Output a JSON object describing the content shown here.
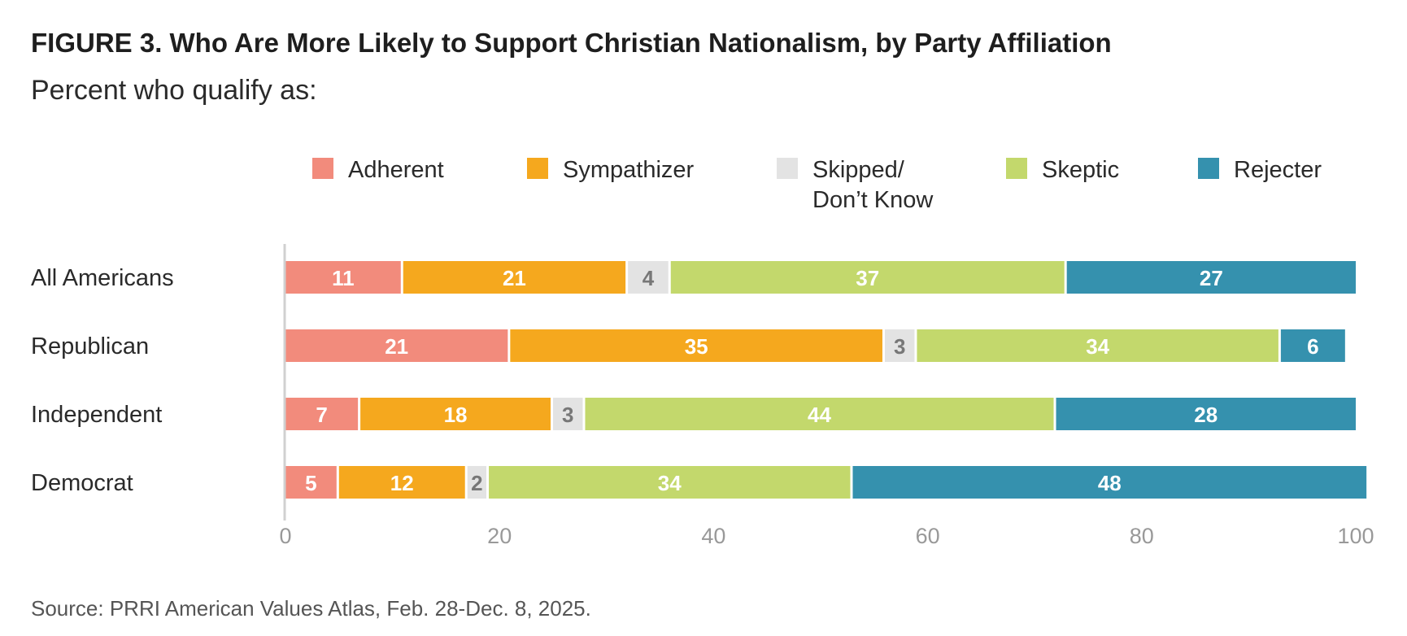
{
  "figure_title": "FIGURE 3.  Who Are More Likely to Support Christian Nationalism, by Party Affiliation",
  "subtitle": "Percent who qualify as:",
  "source": "Source: PRRI American Values Atlas, Feb. 28-Dec. 8, 2025.",
  "chart_data": {
    "type": "bar",
    "orientation": "horizontal",
    "stacked": true,
    "categories": [
      "All Americans",
      "Republican",
      "Independent",
      "Democrat"
    ],
    "series": [
      {
        "name": "Adherent",
        "color": "#f28b7c",
        "label_color": "#ffffff",
        "values": [
          11,
          21,
          7,
          5
        ]
      },
      {
        "name": "Sympathizer",
        "color": "#f5a81e",
        "label_color": "#ffffff",
        "values": [
          21,
          35,
          18,
          12
        ]
      },
      {
        "name": "Skipped/\nDon’t Know",
        "color": "#e3e3e3",
        "label_color": "#777777",
        "values": [
          4,
          3,
          3,
          2
        ]
      },
      {
        "name": "Skeptic",
        "color": "#c3d86c",
        "label_color": "#ffffff",
        "values": [
          37,
          34,
          44,
          34
        ]
      },
      {
        "name": "Rejecter",
        "color": "#3591ae",
        "label_color": "#ffffff",
        "values": [
          27,
          6,
          28,
          48
        ]
      }
    ],
    "xlim": [
      0,
      100
    ],
    "xticks": [
      0,
      20,
      40,
      60,
      80,
      100
    ],
    "legend_position": "top",
    "grid": false
  }
}
